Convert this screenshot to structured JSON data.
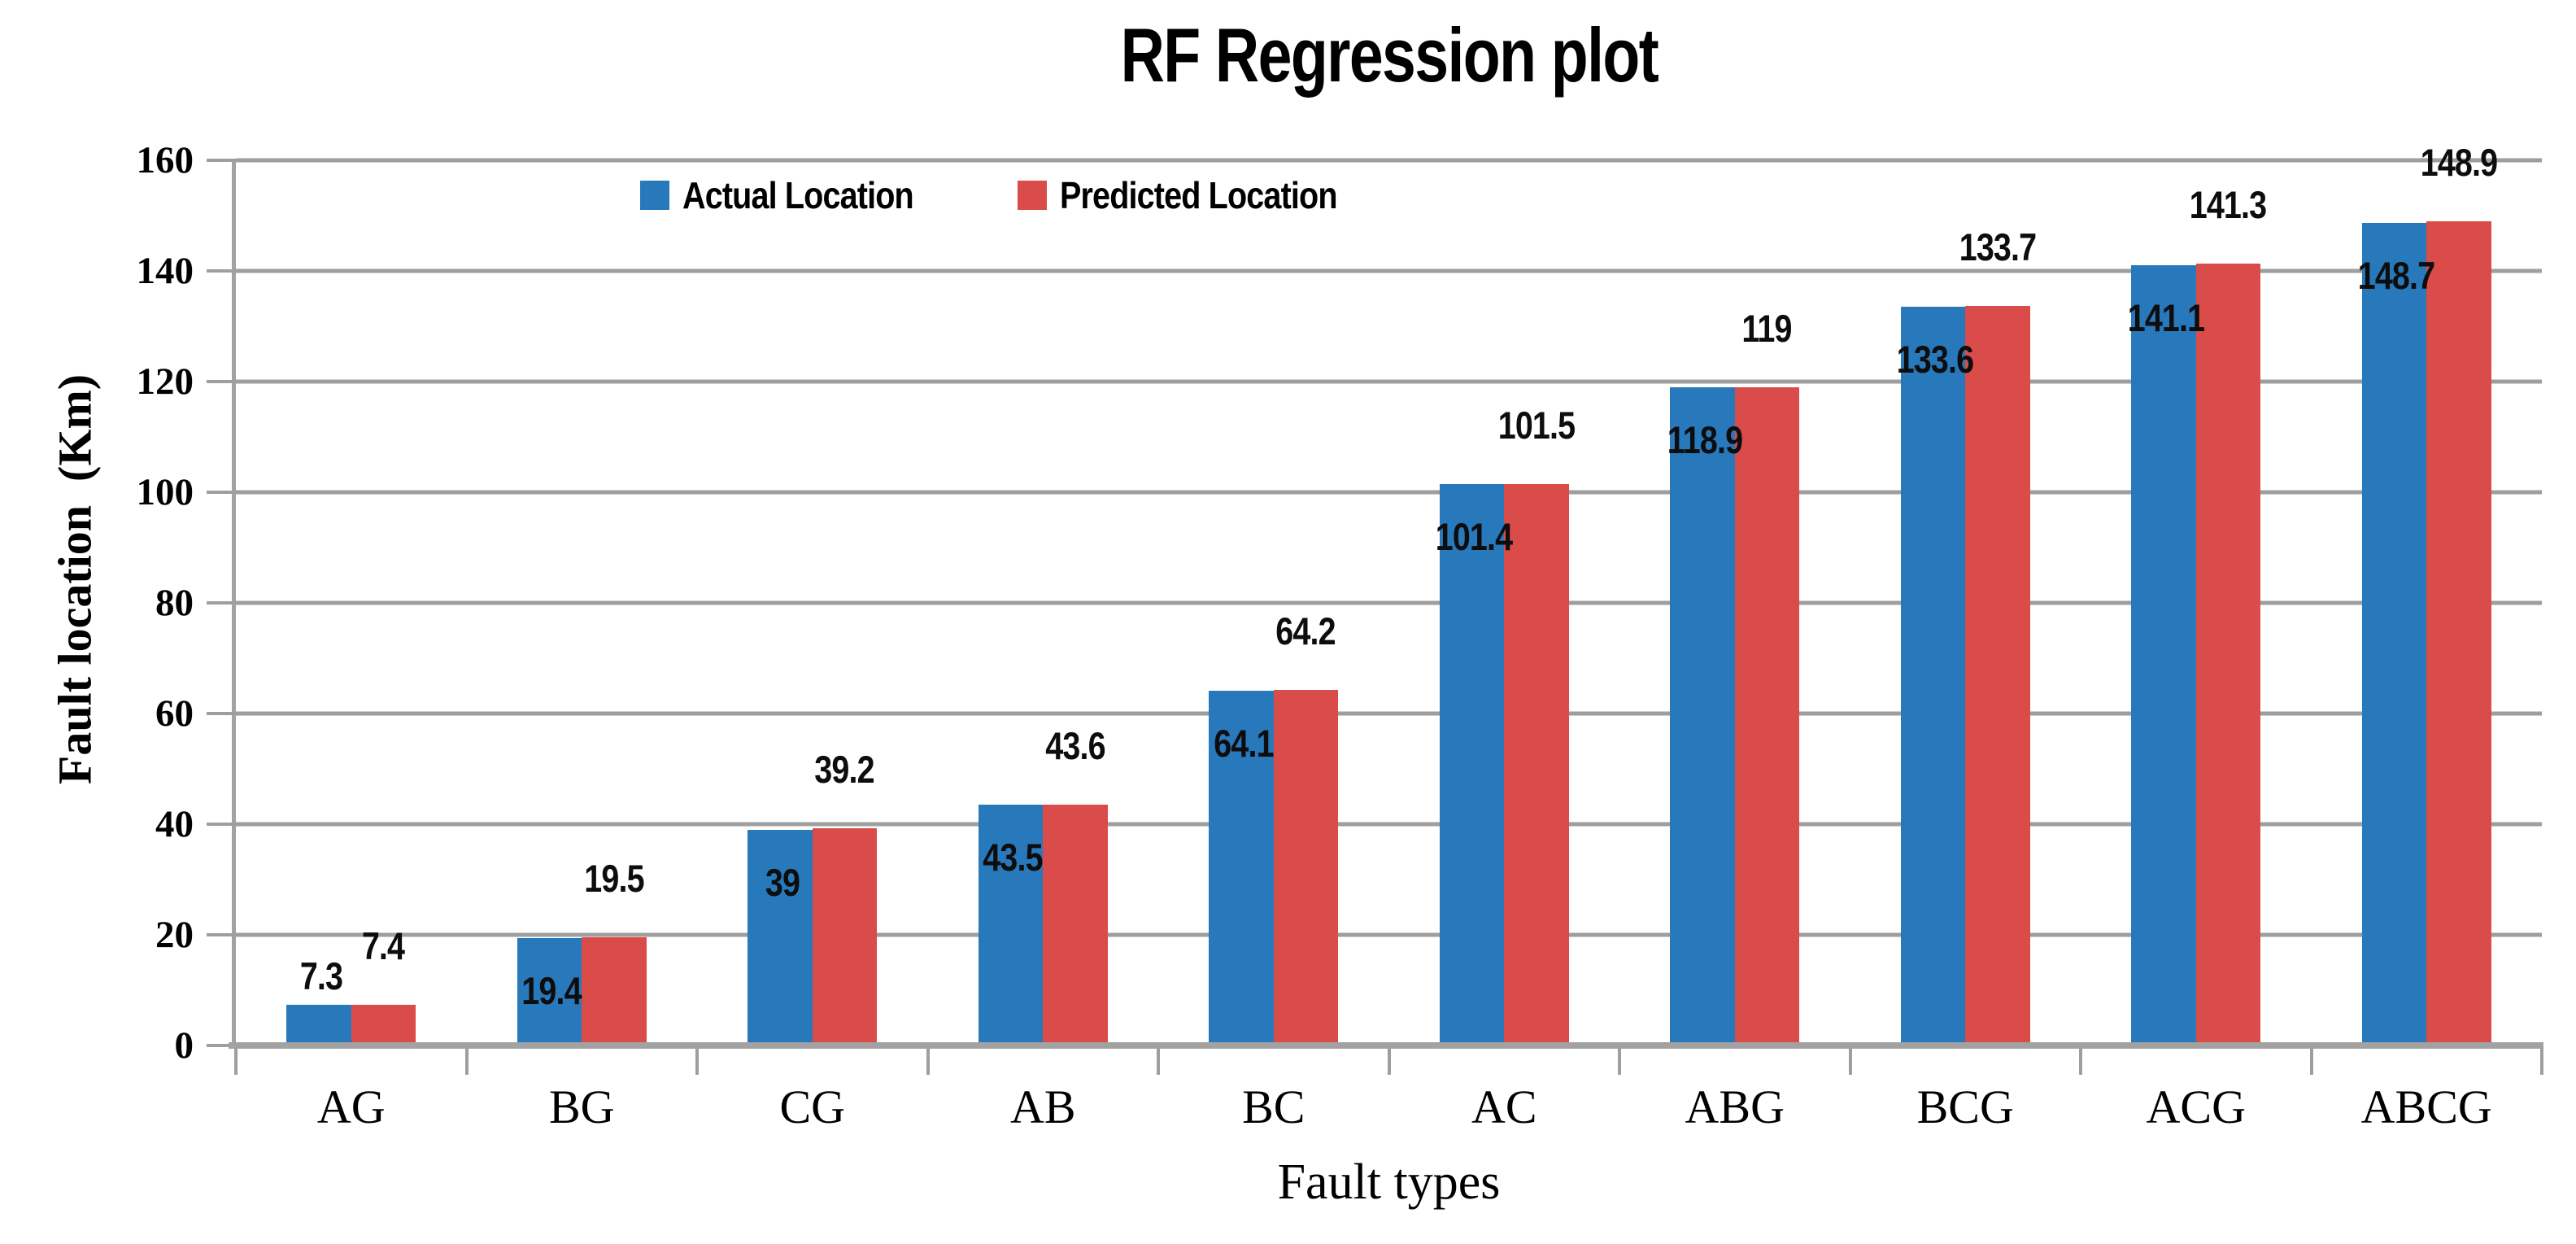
{
  "title": "RF Regression plot",
  "y_axis": {
    "label_display": "Fault location  (Km)"
  },
  "x_axis": {
    "label": "Fault types"
  },
  "colors": {
    "actual": "#2879BC",
    "predicted": "#D94C49",
    "gridline": "#9E9E9E",
    "axis": "#A2A2A2",
    "text": "#000000"
  },
  "chart_data": {
    "type": "bar",
    "title": "RF Regression plot",
    "categories": [
      "AG",
      "BG",
      "CG",
      "AB",
      "BC",
      "AC",
      "ABG",
      "BCG",
      "ACG",
      "ABCG"
    ],
    "series": [
      {
        "name": "Actual Location",
        "color": "#2879BC",
        "values": [
          7.3,
          19.4,
          39,
          43.5,
          64.1,
          101.4,
          118.9,
          133.6,
          141.1,
          148.7
        ]
      },
      {
        "name": "Predicted Location",
        "color": "#D94C49",
        "values": [
          7.4,
          19.5,
          39.2,
          43.6,
          64.2,
          101.5,
          119,
          133.7,
          141.3,
          148.9
        ]
      }
    ],
    "xlabel": "Fault types",
    "ylabel": "Fault location (Km)",
    "ylim": [
      0,
      160
    ],
    "yticks": [
      0,
      20,
      40,
      60,
      80,
      100,
      120,
      140,
      160
    ],
    "grid": true,
    "data_labels": true,
    "legend_position": "top-inside-left"
  }
}
